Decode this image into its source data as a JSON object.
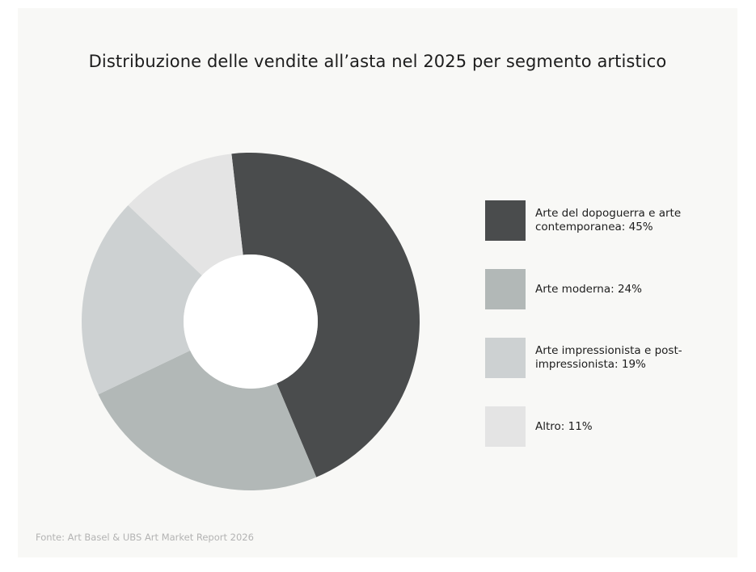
{
  "chart_data": {
    "type": "pie",
    "title": "Distribuzione delle vendite all’asta nel 2025 per segmento artistico",
    "categories": [
      "Arte del dopoguerra e arte contemporanea: 45%",
      "Arte moderna: 24%",
      "Arte impressionista e post-impressionista: 19%",
      "Altro: 11%"
    ],
    "values": [
      45,
      24,
      19,
      11
    ],
    "colors": [
      "#4a4c4d",
      "#b2b8b7",
      "#cdd1d2",
      "#e4e4e4"
    ],
    "hole_color": "#ffffff",
    "legend_placement": "right",
    "source": "Fonte: Art Basel & UBS Art Market Report 2026"
  }
}
